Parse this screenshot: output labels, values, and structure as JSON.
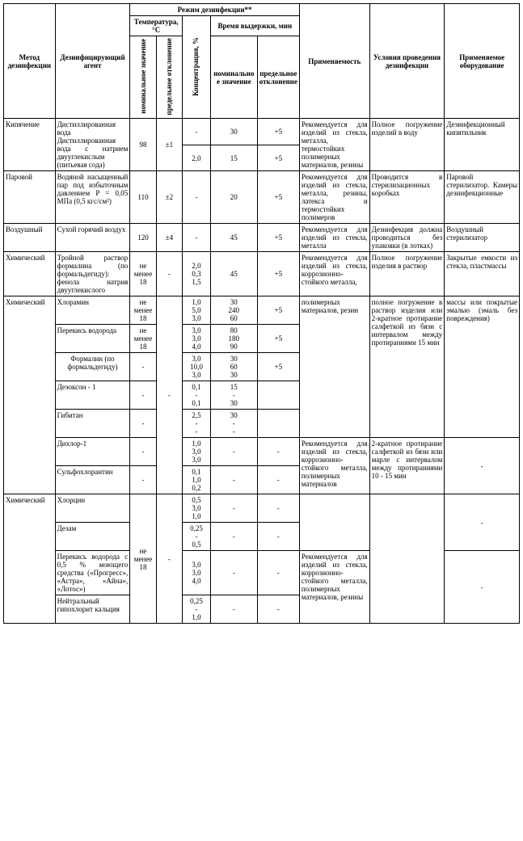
{
  "headers": {
    "method": "Метод дезинфекции",
    "agent": "Дезинфицирующий агент",
    "regime": "Режим дезинфекции**",
    "temp": "Температура, °C",
    "temp_nominal": "номинальное значение",
    "temp_deviation": "предельное отклонение",
    "concentration": "Концентрация, %",
    "time": "Время выдержки, мин",
    "time_nominal": "номинальное значение",
    "time_deviation": "предельное отклонение",
    "applicability": "Применяемость",
    "conditions": "Условия проведения дезинфекции",
    "equipment": "Применяемое оборудование"
  },
  "rows": {
    "boil": {
      "method": "Кипячение",
      "agent1": "Дистиллированная вода",
      "agent2": "Дистиллированная вода с натрием двууглекислым (питьевая сода)",
      "temp_nom": "98",
      "temp_dev": "±1",
      "conc1": "-",
      "time1_nom": "30",
      "time1_dev": "+5",
      "conc2": "2,0",
      "time2_nom": "15",
      "time2_dev": "+5",
      "applic": "Рекомендуется для изделий из стекла, металла, термостойких полимерных материалов, резины",
      "cond": "Полное погружение изделий в воду",
      "equip": "Дезинфекционный кипятильник"
    },
    "steam": {
      "method": "Паровой",
      "agent": "Водяной насыщенный пар под избыточным давлением P = 0,05 МПа (0,5 кгс/см²)",
      "temp_nom": "110",
      "temp_dev": "±2",
      "conc": "-",
      "time_nom": "20",
      "time_dev": "+5",
      "applic": "Рекомендуется для изделий из стекла, металла, резины, латекса и термостойких полимеров",
      "cond": "Проводится в стерилизационных коробках",
      "equip": "Паровой стерилизатор. Камеры дезинфекционные"
    },
    "air": {
      "method": "Воздушный",
      "agent": "Сухой горячий воздух",
      "temp_nom": "120",
      "temp_dev": "±4",
      "conc": "-",
      "time_nom": "45",
      "time_dev": "+5",
      "applic": "Рекомендуется для изделий из стекла, металла",
      "cond": "Дезинфекция должна проводиться без упаковки (в лотках)",
      "equip": "Воздушный стерилизатор"
    },
    "chem1": {
      "method": "Химический",
      "agent": "Тройной раствор формалина (по формальдегиду): фенола натрия двууглекислого",
      "temp_nom": "не менее 18",
      "temp_dev": "-",
      "conc": "2,0\n0,3\n1,5",
      "time_nom": "45",
      "time_dev": "+5",
      "applic": "Рекомендуется для изделий из стекла, коррозионно-стойкого металла,",
      "cond": "Полное погружение изделия в раствор",
      "equip": "Закрытые емкости из стекла, пластмассы"
    },
    "chem2": {
      "method": "Химический",
      "temp_nom": "не менее 18",
      "temp_dev": "-",
      "applic": "полимерных материалов, резин",
      "cond": "полное погружение в раствор изделия или 2-кратное протирание салфеткой из бязи с интервалом между протираниями 15 мин",
      "equip": "массы или покрытые эмалью (эмаль без повреждения)",
      "sub": {
        "chloramine": {
          "agent": "Хлорамин",
          "conc": "1,0\n5,0\n3,0",
          "time_nom": "30\n240\n60",
          "time_dev": "+5"
        },
        "peroxide": {
          "agent": "Перекись водорода",
          "temp_nom": "не менее 18",
          "conc": "3,0\n3,0\n4,0",
          "time_nom": "80\n180\n90",
          "time_dev": "+5"
        },
        "formalin": {
          "agent": "Формалин (по формальдегиду)",
          "conc": "3,0\n10,0\n3,0",
          "time_nom": "30\n60\n30",
          "time_dev": "+5"
        },
        "dezokson": {
          "agent": "Дезоксон - 1",
          "conc": "0,1\n-\n0,1",
          "time_nom": "15\n-\n30"
        },
        "gibitan": {
          "agent": "Гибитан",
          "conc": "2,5\n-\n-",
          "time_nom": "30\n-\n-"
        },
        "dichlor": {
          "agent": "Дихлор-1",
          "conc": "1,0\n3,0\n3,0",
          "time_nom": "-",
          "time_dev": "-",
          "applic": "Рекомендуется для изделий из стекла,",
          "cond": "2-кратное протирание салфеткой из бязи"
        },
        "sulfo": {
          "agent": "Сульфохлорантин",
          "conc": "0,1\n1,0\n0,2",
          "time_nom": "-",
          "time_dev": "-",
          "applic": "коррозионно-стойкого металла, полимерных материалов",
          "cond": "или марле с интервалом между протираниями 10 - 15 мин"
        }
      }
    },
    "chem3": {
      "method": "Химический",
      "temp_nom": "не менее 18",
      "sub": {
        "chlorcin": {
          "agent": "Хлорцин",
          "conc": "0,5\n3,0\n1,0",
          "time_nom": "-",
          "time_dev": "-"
        },
        "dezam": {
          "agent": "Дезам",
          "conc": "0,25\n-\n0,5",
          "time_nom": "-",
          "time_dev": "-"
        },
        "peroxide05": {
          "agent": "Перекись водорода с 0,5 % моющего средства («Прогресс», «Астра», «Айна», «Лотос»)",
          "conc": "3,0\n3,0\n4,0",
          "time_nom": "-",
          "time_dev": "-",
          "applic": "Рекомендуется для изделий из стекла, коррозионно-стойкого металла,"
        },
        "hypochlorite": {
          "agent": "Нейтральный гипохлорит кальция",
          "conc": "0,25\n-\n1,0",
          "time_nom": "-",
          "time_dev": "-",
          "applic": "полимерных материалов, резины"
        }
      }
    }
  }
}
